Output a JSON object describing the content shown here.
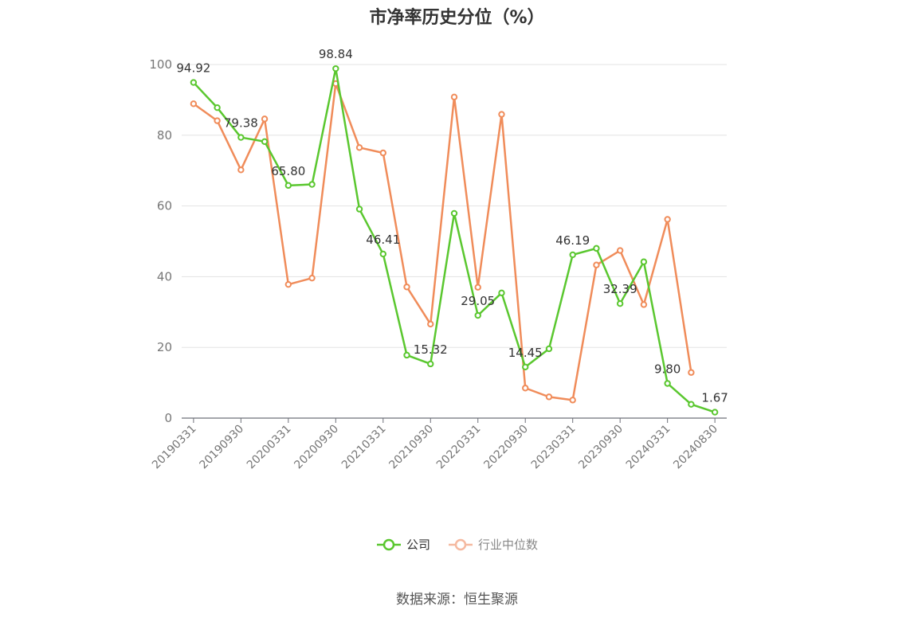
{
  "chart_data": {
    "type": "line",
    "title": "市净率历史分位（%）",
    "xlabel": "",
    "ylabel": "",
    "ylim": [
      0,
      100
    ],
    "yticks": [
      0,
      20,
      40,
      60,
      80,
      100
    ],
    "grid": true,
    "legend_position": "bottom",
    "x": [
      "20190331",
      "20190630",
      "20190930",
      "20191231",
      "20200331",
      "20200630",
      "20200930",
      "20201231",
      "20210331",
      "20210630",
      "20210930",
      "20211231",
      "20220331",
      "20220630",
      "20220930",
      "20221231",
      "20230331",
      "20230630",
      "20230930",
      "20231231",
      "20240331",
      "20240630",
      "20240830"
    ],
    "x_tick_labels": [
      "20190331",
      "20190930",
      "20200331",
      "20200930",
      "20210331",
      "20210930",
      "20220331",
      "20220930",
      "20230331",
      "20230930",
      "20240331",
      "20240830"
    ],
    "series": [
      {
        "name": "公司",
        "color": "#5ac72f",
        "values": [
          94.92,
          87.8,
          79.38,
          78.2,
          65.8,
          66.1,
          98.84,
          59.1,
          46.41,
          17.8,
          15.32,
          57.9,
          29.05,
          35.4,
          14.45,
          19.6,
          46.19,
          48.0,
          32.39,
          44.2,
          9.8,
          3.9,
          1.67
        ],
        "labels": [
          "94.92",
          "",
          "79.38",
          "",
          "65.80",
          "",
          "98.84",
          "",
          "46.41",
          "",
          "15.32",
          "",
          "29.05",
          "",
          "14.45",
          "",
          "46.19",
          "",
          "32.39",
          "",
          "9.80",
          "",
          "1.67"
        ]
      },
      {
        "name": "行业中位数",
        "color": "#f08c5a",
        "values": [
          88.9,
          84.1,
          70.2,
          84.6,
          37.8,
          39.6,
          94.6,
          76.5,
          75.0,
          37.1,
          26.6,
          90.8,
          37.0,
          85.9,
          8.5,
          6.0,
          5.1,
          43.3,
          47.4,
          32.1,
          56.2,
          12.9,
          null
        ]
      }
    ]
  },
  "legend": {
    "company": "公司",
    "industry": "行业中位数"
  },
  "footer": {
    "source": "数据来源：恒生聚源"
  }
}
